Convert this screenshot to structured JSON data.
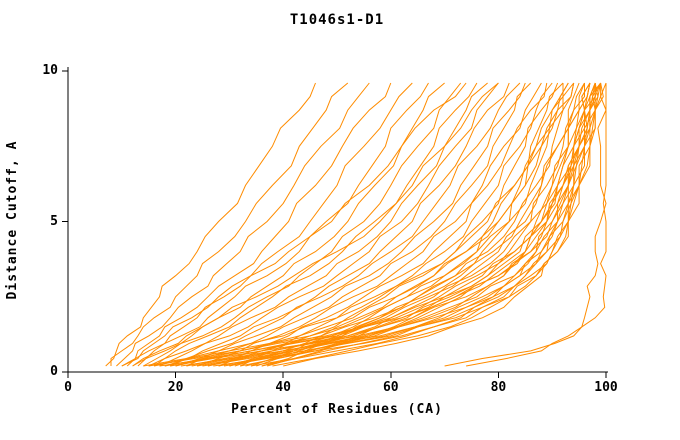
{
  "chart_data": {
    "type": "line",
    "title": "T1046s1-D1",
    "xlabel": "Percent of Residues (CA)",
    "ylabel": "Distance Cutoff, A",
    "xlim": [
      0,
      100
    ],
    "ylim": [
      0,
      10
    ],
    "x_ticks": [
      0,
      20,
      40,
      60,
      80,
      100
    ],
    "y_ticks": [
      0,
      5,
      10
    ],
    "grid": false,
    "legend": "none",
    "line_color": "#ff8c00",
    "axis_color": "#000000",
    "background": "#ffffff",
    "series_description": "Each curve gives percent of CA residues (x) superimposable under a distance cutoff (y, Angstroms); one curve per predicted model",
    "y_levels": [
      0.2,
      0.7,
      1.2,
      1.8,
      2.5,
      3.2,
      4.0,
      5.0,
      6.2,
      7.5,
      8.7,
      9.6
    ],
    "curves_x": [
      [
        7,
        9,
        11,
        14,
        17,
        20,
        24,
        28,
        33,
        38,
        43,
        46
      ],
      [
        8,
        10,
        13,
        16,
        20,
        24,
        28,
        33,
        38,
        43,
        48,
        52
      ],
      [
        9,
        12,
        15,
        19,
        23,
        27,
        32,
        37,
        42,
        47,
        52,
        56
      ],
      [
        10,
        13,
        17,
        21,
        26,
        31,
        36,
        41,
        46,
        51,
        56,
        60
      ],
      [
        11,
        15,
        19,
        24,
        29,
        34,
        39,
        45,
        50,
        55,
        60,
        64
      ],
      [
        12,
        16,
        21,
        26,
        31,
        37,
        43,
        48,
        54,
        59,
        63,
        67
      ],
      [
        13,
        18,
        23,
        28,
        34,
        40,
        46,
        52,
        57,
        62,
        66,
        70
      ],
      [
        14,
        19,
        25,
        31,
        37,
        43,
        49,
        55,
        60,
        65,
        69,
        73
      ],
      [
        10,
        14,
        18,
        23,
        28,
        34,
        41,
        49,
        56,
        62,
        68,
        74
      ],
      [
        12,
        17,
        22,
        28,
        35,
        42,
        50,
        58,
        64,
        70,
        75,
        80
      ],
      [
        15,
        20,
        26,
        32,
        38,
        45,
        51,
        57,
        63,
        68,
        72,
        76
      ],
      [
        16,
        22,
        28,
        34,
        41,
        48,
        54,
        60,
        65,
        70,
        74,
        78
      ],
      [
        17,
        23,
        30,
        36,
        43,
        50,
        56,
        62,
        67,
        72,
        76,
        80
      ],
      [
        18,
        25,
        32,
        39,
        46,
        52,
        58,
        64,
        69,
        74,
        78,
        82
      ],
      [
        19,
        26,
        33,
        40,
        47,
        54,
        60,
        66,
        71,
        76,
        80,
        84
      ],
      [
        20,
        28,
        35,
        42,
        49,
        56,
        62,
        68,
        73,
        78,
        82,
        85
      ],
      [
        22,
        30,
        37,
        44,
        51,
        58,
        64,
        70,
        75,
        79,
        83,
        86
      ],
      [
        24,
        32,
        39,
        46,
        53,
        60,
        66,
        72,
        77,
        81,
        85,
        88
      ],
      [
        26,
        34,
        41,
        48,
        55,
        62,
        68,
        74,
        78,
        82,
        86,
        89
      ],
      [
        28,
        36,
        43,
        50,
        57,
        64,
        70,
        75,
        80,
        84,
        87,
        90
      ],
      [
        30,
        38,
        45,
        52,
        59,
        66,
        72,
        77,
        81,
        85,
        88,
        91
      ],
      [
        32,
        40,
        47,
        54,
        61,
        68,
        74,
        79,
        83,
        86,
        89,
        92
      ],
      [
        34,
        42,
        49,
        56,
        63,
        70,
        76,
        80,
        84,
        87,
        90,
        93
      ],
      [
        36,
        44,
        51,
        58,
        65,
        72,
        77,
        82,
        85,
        88,
        91,
        94
      ],
      [
        31,
        41,
        50,
        58,
        66,
        73,
        79,
        84,
        88,
        91,
        94,
        96
      ],
      [
        33,
        43,
        52,
        60,
        68,
        75,
        81,
        86,
        90,
        93,
        95,
        97
      ],
      [
        35,
        45,
        54,
        62,
        70,
        77,
        83,
        88,
        91,
        94,
        96,
        97
      ],
      [
        37,
        47,
        56,
        64,
        72,
        79,
        85,
        89,
        92,
        95,
        97,
        98
      ],
      [
        14,
        28,
        40,
        50,
        58,
        65,
        72,
        78,
        83,
        87,
        90,
        92
      ],
      [
        16,
        30,
        43,
        53,
        61,
        68,
        74,
        80,
        85,
        88,
        91,
        93
      ],
      [
        18,
        32,
        45,
        55,
        63,
        70,
        76,
        82,
        86,
        89,
        92,
        94
      ],
      [
        20,
        34,
        47,
        57,
        65,
        72,
        78,
        83,
        87,
        90,
        92,
        94
      ],
      [
        22,
        36,
        49,
        59,
        67,
        74,
        80,
        85,
        88,
        91,
        93,
        95
      ],
      [
        24,
        38,
        51,
        61,
        69,
        76,
        82,
        86,
        89,
        92,
        94,
        96
      ],
      [
        26,
        40,
        53,
        63,
        71,
        78,
        83,
        87,
        90,
        93,
        95,
        96
      ],
      [
        28,
        42,
        55,
        65,
        73,
        80,
        85,
        88,
        91,
        93,
        95,
        97
      ],
      [
        30,
        44,
        57,
        67,
        75,
        81,
        86,
        89,
        92,
        94,
        96,
        97
      ],
      [
        32,
        46,
        59,
        69,
        77,
        83,
        87,
        90,
        93,
        95,
        96,
        98
      ],
      [
        34,
        48,
        61,
        71,
        79,
        84,
        88,
        91,
        93,
        95,
        97,
        98
      ],
      [
        36,
        50,
        63,
        73,
        80,
        85,
        89,
        92,
        94,
        96,
        97,
        98
      ],
      [
        38,
        52,
        65,
        75,
        82,
        87,
        90,
        93,
        95,
        96,
        98,
        99
      ],
      [
        40,
        54,
        67,
        77,
        83,
        88,
        91,
        93,
        95,
        97,
        98,
        99
      ],
      [
        15,
        32,
        48,
        60,
        70,
        78,
        84,
        88,
        91,
        94,
        96,
        97
      ],
      [
        17,
        34,
        50,
        62,
        72,
        80,
        85,
        89,
        92,
        94,
        96,
        98
      ],
      [
        19,
        36,
        52,
        64,
        74,
        81,
        86,
        90,
        93,
        95,
        97,
        98
      ],
      [
        21,
        38,
        54,
        66,
        76,
        83,
        87,
        91,
        93,
        95,
        97,
        98
      ],
      [
        23,
        40,
        56,
        68,
        78,
        84,
        88,
        91,
        94,
        96,
        97,
        99
      ],
      [
        25,
        42,
        58,
        70,
        79,
        85,
        89,
        92,
        94,
        96,
        98,
        99
      ],
      [
        27,
        44,
        60,
        72,
        81,
        86,
        90,
        93,
        95,
        97,
        98,
        99
      ],
      [
        29,
        46,
        62,
        74,
        82,
        87,
        91,
        93,
        95,
        97,
        98,
        99
      ],
      [
        74,
        88,
        93,
        96,
        97,
        98,
        98,
        99,
        99,
        99,
        100,
        100
      ],
      [
        70,
        86,
        94,
        98,
        99.5,
        100,
        100,
        100,
        100,
        100,
        100,
        100
      ]
    ]
  }
}
